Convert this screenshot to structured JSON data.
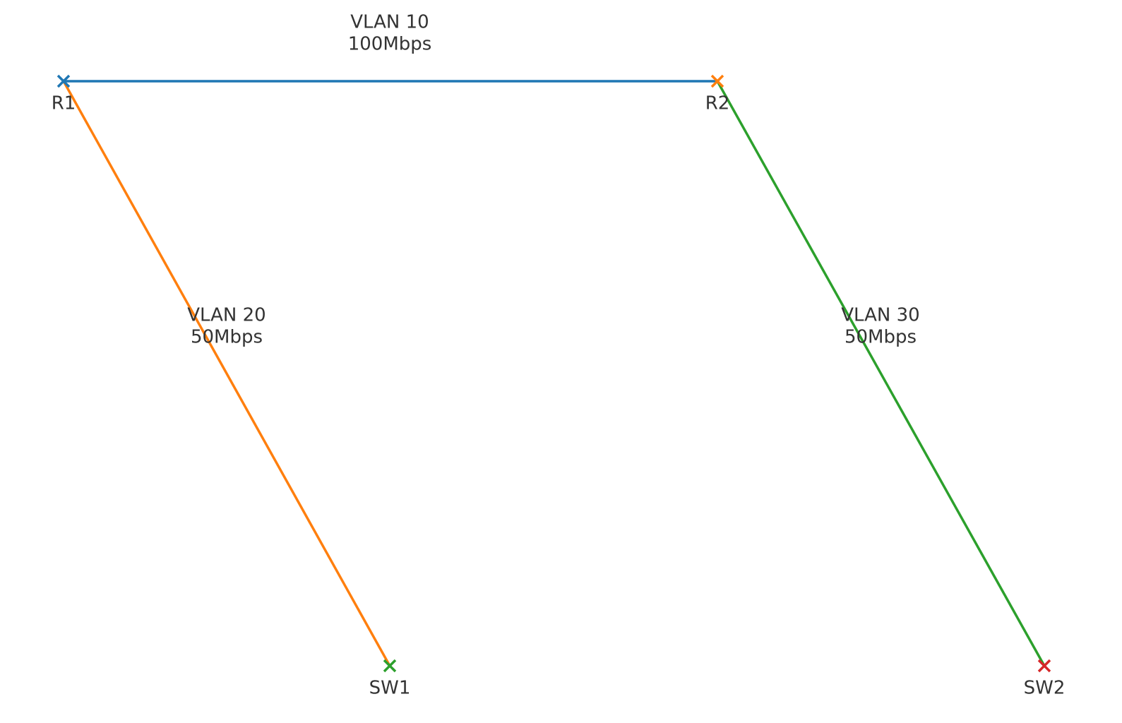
{
  "diagram": {
    "nodes": [
      {
        "id": "R1",
        "label": "R1",
        "color": "#1f77b4"
      },
      {
        "id": "R2",
        "label": "R2",
        "color": "#ff7f0e"
      },
      {
        "id": "SW1",
        "label": "SW1",
        "color": "#2ca02c"
      },
      {
        "id": "SW2",
        "label": "SW2",
        "color": "#d62728"
      }
    ],
    "links": [
      {
        "from": "R1",
        "to": "R2",
        "vlan": "VLAN 10",
        "bandwidth": "100Mbps",
        "color": "#1f77b4"
      },
      {
        "from": "R1",
        "to": "SW1",
        "vlan": "VLAN 20",
        "bandwidth": "50Mbps",
        "color": "#ff7f0e"
      },
      {
        "from": "R2",
        "to": "SW2",
        "vlan": "VLAN 30",
        "bandwidth": "50Mbps",
        "color": "#2ca02c"
      }
    ]
  }
}
